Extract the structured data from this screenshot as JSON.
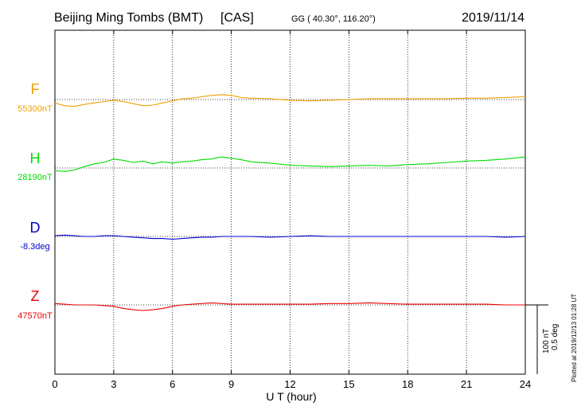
{
  "header": {
    "station": "Beijing Ming Tombs (BMT)",
    "institute": "[CAS]",
    "coords": "GG ( 40.30°, 116.20°)",
    "date": "2019/11/14"
  },
  "footer": {
    "plotted": "Plotted at 2019/12/13 01:28 UT"
  },
  "scale_bar": {
    "label1": "100 nT",
    "label2": "0.5 deg"
  },
  "colors": {
    "F": "#f0a000",
    "H": "#00dd00",
    "D": "#0000cc",
    "Z": "#ee0000",
    "axis": "#000000"
  },
  "chart_data": {
    "type": "line",
    "title": "Beijing Ming Tombs (BMT)  [CAS]",
    "xlabel": "U T (hour)",
    "ylabel": "",
    "xlim": [
      0,
      24
    ],
    "xticks": [
      0,
      3,
      6,
      9,
      12,
      15,
      18,
      21,
      24
    ],
    "grid": true,
    "scale_nT_per_bar": 100,
    "series": [
      {
        "name": "F",
        "baseline_label": "55300nT",
        "x": [
          0,
          0.5,
          1,
          1.5,
          2,
          2.5,
          3,
          3.5,
          4,
          4.5,
          5,
          5.5,
          6,
          6.5,
          7,
          7.5,
          8,
          8.5,
          9,
          9.5,
          10,
          11,
          12,
          13,
          14,
          15,
          16,
          17,
          18,
          19,
          20,
          21,
          22,
          23,
          24
        ],
        "values": [
          -5,
          -9,
          -10,
          -7,
          -5,
          -3,
          -1,
          -3,
          -6,
          -9,
          -8,
          -5,
          -2,
          1,
          2,
          4,
          6,
          7,
          6,
          3,
          2,
          1,
          -1,
          -2,
          -1,
          0,
          1,
          1,
          1,
          1,
          1,
          2,
          2,
          3,
          4
        ]
      },
      {
        "name": "H",
        "baseline_label": "28190nT",
        "x": [
          0,
          0.5,
          1,
          1.5,
          2,
          2.5,
          3,
          3.5,
          4,
          4.5,
          5,
          5.5,
          6,
          6.5,
          7,
          7.5,
          8,
          8.5,
          9,
          9.5,
          10,
          11,
          12,
          13,
          14,
          15,
          16,
          17,
          18,
          19,
          20,
          21,
          22,
          23,
          24
        ],
        "values": [
          -4,
          -5,
          -3,
          2,
          6,
          8,
          13,
          11,
          8,
          10,
          6,
          9,
          7,
          9,
          10,
          12,
          13,
          16,
          14,
          12,
          9,
          7,
          4,
          3,
          2,
          3,
          4,
          3,
          5,
          6,
          8,
          10,
          11,
          13,
          16
        ]
      },
      {
        "name": "D",
        "baseline_label": "-8.3deg",
        "x": [
          0,
          0.5,
          1,
          1.5,
          2,
          2.5,
          3,
          3.5,
          4,
          4.5,
          5,
          5.5,
          6,
          6.5,
          7,
          7.5,
          8,
          8.5,
          9,
          9.5,
          10,
          11,
          12,
          13,
          14,
          15,
          16,
          17,
          18,
          19,
          20,
          21,
          22,
          23,
          24
        ],
        "values": [
          1,
          2,
          1,
          0,
          0,
          1,
          1,
          0,
          -1,
          -2,
          -3,
          -3,
          -4,
          -3,
          -2,
          -1,
          -1,
          0,
          0,
          0,
          0,
          -1,
          0,
          1,
          0,
          0,
          0,
          0,
          0,
          0,
          0,
          0,
          0,
          -1,
          0
        ]
      },
      {
        "name": "Z",
        "baseline_label": "47570nT",
        "x": [
          0,
          0.5,
          1,
          1.5,
          2,
          2.5,
          3,
          3.5,
          4,
          4.5,
          5,
          5.5,
          6,
          6.5,
          7,
          7.5,
          8,
          8.5,
          9,
          9.5,
          10,
          11,
          12,
          13,
          14,
          15,
          16,
          17,
          18,
          19,
          20,
          21,
          22,
          23,
          24
        ],
        "values": [
          2,
          1,
          0,
          0,
          0,
          -1,
          -2,
          -5,
          -7,
          -8,
          -7,
          -5,
          -2,
          0,
          1,
          2,
          3,
          2,
          1,
          1,
          1,
          1,
          1,
          1,
          2,
          2,
          3,
          2,
          1,
          1,
          1,
          1,
          1,
          0,
          0
        ]
      }
    ]
  }
}
